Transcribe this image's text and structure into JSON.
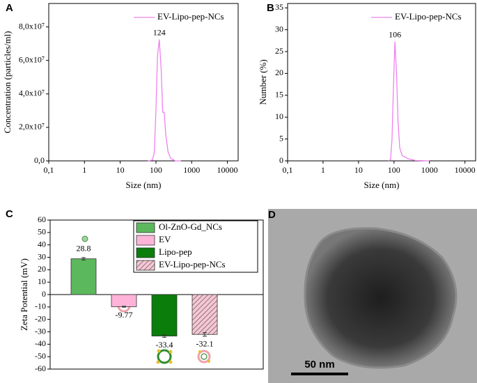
{
  "chart_data": [
    {
      "type": "line",
      "label": "A",
      "xlabel": "Size (nm)",
      "ylabel": "Concentration (particles/ml)",
      "xscale": "log",
      "xlim": [
        0.1,
        20000
      ],
      "xticks": [
        {
          "value": 0.1,
          "label": "0,1"
        },
        1,
        10,
        100,
        1000,
        10000
      ],
      "ylim": [
        0,
        94000000
      ],
      "yticks": [
        {
          "value": 0,
          "label": "0,0"
        },
        {
          "value": 20000000,
          "label": "2,0x10⁷"
        },
        {
          "value": 40000000,
          "label": "4,0x10⁷"
        },
        {
          "value": 60000000,
          "label": "6,0x10⁷"
        },
        {
          "value": 80000000,
          "label": "8,0x10⁷"
        }
      ],
      "legend": "upper right",
      "series": [
        {
          "name": "EV-Lipo-pep-NCs",
          "color": "#ee82ee",
          "x": [
            60,
            80,
            90,
            100,
            110,
            124,
            140,
            155,
            170,
            190,
            220,
            260,
            350,
            500
          ],
          "values": [
            0,
            500000,
            5000000,
            30000000,
            62000000,
            72500000,
            55000000,
            29000000,
            29000000,
            15000000,
            5000000,
            1500000,
            0,
            0
          ]
        }
      ],
      "annotations": [
        {
          "text": "124",
          "x": 124,
          "y": 72500000,
          "color": "#cc0000"
        }
      ]
    },
    {
      "type": "line",
      "label": "B",
      "xlabel": "Size (nm)",
      "ylabel": "Number (%)",
      "xscale": "log",
      "xlim": [
        0.1,
        20000
      ],
      "xticks": [
        {
          "value": 0.1,
          "label": "0,1"
        },
        1,
        10,
        100,
        1000,
        10000
      ],
      "ylim": [
        0,
        36
      ],
      "yticks": [
        0,
        5,
        10,
        15,
        20,
        25,
        30,
        35
      ],
      "legend": "upper right",
      "series": [
        {
          "name": "EV-Lipo-pep-NCs",
          "color": "#ee82ee",
          "x": [
            70,
            80,
            88,
            95,
            106,
            118,
            130,
            145,
            170,
            250,
            400,
            1000
          ],
          "values": [
            0,
            0.3,
            5,
            15,
            27.3,
            20,
            9,
            3,
            1.2,
            0.5,
            0.1,
            0
          ]
        }
      ],
      "annotations": [
        {
          "text": "106",
          "x": 106,
          "y": 27.3,
          "color": "#cc0000"
        }
      ]
    },
    {
      "type": "bar",
      "label": "C",
      "ylabel": "Zeta Potential (mV)",
      "ylim": [
        -60,
        60
      ],
      "yticks": [
        -60,
        -50,
        -40,
        -30,
        -20,
        -10,
        0,
        10,
        20,
        30,
        40,
        50,
        60
      ],
      "legend": "upper right",
      "series": [
        {
          "name": "Ol-ZnO-Gd_NCs",
          "color": "#5cb85c",
          "values": [
            28.8
          ],
          "errors": [
            1.0
          ]
        },
        {
          "name": "EV",
          "color": "#ffb3d9",
          "values": [
            -9.77
          ],
          "errors": [
            0.4
          ]
        },
        {
          "name": "Lipo-pep",
          "color": "#0b7d0b",
          "values": [
            -33.4
          ],
          "errors": [
            1.0
          ]
        },
        {
          "name": "EV-Lipo-pep-NCs",
          "color": "#e6b8c4",
          "pattern": "hatch",
          "values": [
            -32.1
          ],
          "errors": [
            1.5
          ]
        }
      ]
    }
  ],
  "image_panel": {
    "label": "D",
    "scale_bar": "50 nm"
  }
}
